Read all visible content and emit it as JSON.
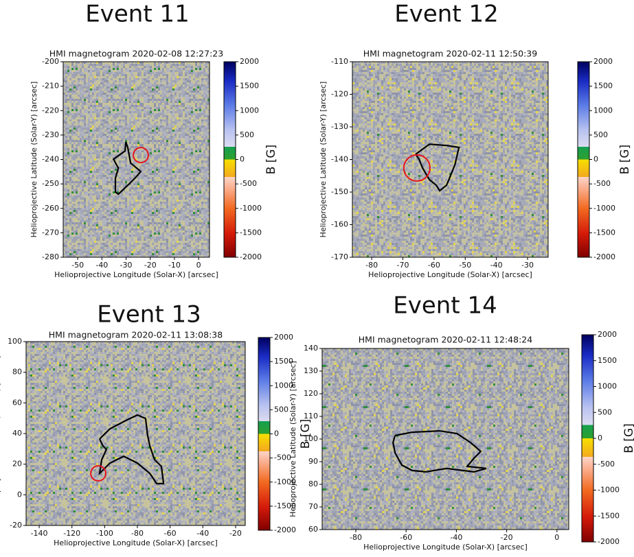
{
  "chart_data": [
    {
      "type": "image",
      "title": "Event 11",
      "subtitle": "HMI magnetogram 2020-02-08 12:27:23",
      "xlabel": "Helioprojective Longitude (Solar-X) [arcsec]",
      "ylabel": "Helioprojective Latitude (Solar-Y) [arcsec]",
      "xlim": [
        -56,
        4.5
      ],
      "ylim": [
        -280,
        -200
      ],
      "xticks": [
        -50,
        -40,
        -30,
        -20,
        -10,
        0
      ],
      "yticks": [
        -280,
        -270,
        -260,
        -250,
        -240,
        -230,
        -220,
        -210,
        -200
      ],
      "colorbar": {
        "label": "B [G]",
        "lim": [
          -2000,
          2000
        ],
        "ticks": [
          -2000,
          -1500,
          -1000,
          -500,
          0,
          500,
          1000,
          1500,
          2000
        ]
      },
      "contour": {
        "color": "#000000",
        "x": [
          -30.1,
          -29.3,
          -28.1,
          -23.9,
          -25.9,
          -28.7,
          -33.2,
          -34.4,
          -34.4,
          -33.2,
          -35.2,
          -30.4,
          -30.1
        ],
        "y": [
          -232.8,
          -235.1,
          -241.5,
          -244.9,
          -247.2,
          -250,
          -254.2,
          -253.3,
          -247.7,
          -243.5,
          -239.9,
          -236.5,
          -232.8
        ]
      },
      "marker": {
        "color": "#e8141c",
        "x": -23.9,
        "y": -238.2,
        "r": 3.1
      }
    },
    {
      "type": "image",
      "title": "Event 12",
      "subtitle": "HMI magnetogram 2020-02-11 12:50:39",
      "xlabel": "Helioprojective Longitude (Solar-X) [arcsec]",
      "ylabel": "Helioprojective Latitude (Solar-Y) [arcsec]",
      "xlim": [
        -86.2,
        -23.4
      ],
      "ylim": [
        -170,
        -110
      ],
      "xticks": [
        -80,
        -70,
        -60,
        -50,
        -40,
        -30
      ],
      "yticks": [
        -170,
        -160,
        -150,
        -140,
        -130,
        -120,
        -110
      ],
      "colorbar": {
        "label": "B [G]",
        "lim": [
          -2000,
          2000
        ],
        "ticks": [
          -2000,
          -1500,
          -1000,
          -500,
          0,
          500,
          1000,
          1500,
          2000
        ]
      },
      "contour": {
        "color": "#000000",
        "x": [
          -65.9,
          -61.5,
          -56.0,
          -52.0,
          -53.3,
          -54.9,
          -56.0,
          -58.2,
          -59.3,
          -61.5,
          -63.7,
          -64.8,
          -65.9
        ],
        "y": [
          -138.4,
          -135.3,
          -135.7,
          -136.3,
          -141.6,
          -145.4,
          -147.9,
          -149.6,
          -147.9,
          -146.2,
          -142.6,
          -139.9,
          -138.4
        ]
      },
      "marker": {
        "color": "#e8141c",
        "x": -65.5,
        "y": -142.6,
        "r": 4.2
      }
    },
    {
      "type": "image",
      "title": "Event 13",
      "subtitle": "HMI magnetogram 2020-02-11 13:08:38",
      "xlabel": "Helioprojective Longitude (Solar-X) [arcsec]",
      "ylabel": "Helioprojective Latitude (Solar-Y) [arcsec]",
      "xlim": [
        -148,
        -14.1
      ],
      "ylim": [
        -20,
        100
      ],
      "xticks": [
        -140,
        -120,
        -100,
        -80,
        -60,
        -40,
        -20
      ],
      "yticks": [
        -20,
        0,
        20,
        40,
        60,
        80,
        100
      ],
      "colorbar": {
        "label": "B [G]",
        "lim": [
          -2000,
          2000
        ],
        "ticks": [
          -2000,
          -1500,
          -1000,
          -500,
          0,
          500,
          1000,
          1500,
          2000
        ]
      },
      "contour": {
        "color": "#000000",
        "x": [
          -103.1,
          -96.8,
          -86.3,
          -80.0,
          -75.0,
          -73.7,
          -72.4,
          -69.5,
          -65.3,
          -64.0,
          -68.2,
          -72.4,
          -80.0,
          -88.4,
          -96.8,
          -103.1,
          -101.8,
          -98.9,
          -101.0,
          -103.1
        ],
        "y": [
          36.4,
          43.1,
          48.9,
          52.1,
          49.8,
          38.6,
          31.9,
          23.0,
          18.5,
          7.3,
          7.3,
          14.0,
          20.7,
          25.2,
          20.7,
          14.0,
          23.0,
          29.7,
          31.9,
          36.4
        ]
      },
      "marker": {
        "color": "#e8141c",
        "x": -103.9,
        "y": 14.0,
        "r": 4.6
      }
    },
    {
      "type": "image",
      "title": "Event 14",
      "subtitle": "HMI magnetogram 2020-02-11 12:48:24",
      "xlabel": "Helioprojective Longitude (Solar-X) [arcsec]",
      "ylabel": "Helioprojective Latitude (Solar-Y) [arcsec]",
      "xlim": [
        -93.4,
        4.7
      ],
      "ylim": [
        60,
        140
      ],
      "xticks": [
        -80,
        -60,
        -40,
        -20,
        0
      ],
      "yticks": [
        60,
        70,
        80,
        90,
        100,
        110,
        120,
        130,
        140
      ],
      "colorbar": {
        "label": "B [G]",
        "lim": [
          -2000,
          2000
        ],
        "ticks": [
          -2000,
          -1500,
          -1000,
          -500,
          0,
          500,
          1000,
          1500,
          2000
        ]
      },
      "contour": {
        "color": "#000000",
        "x": [
          -64.4,
          -57.6,
          -46.7,
          -39.8,
          -34.4,
          -30.3,
          -33.0,
          -35.7,
          -28.1,
          -33.0,
          -43.9,
          -52.1,
          -57.6,
          -61.7,
          -64.4,
          -65.2,
          -64.4
        ],
        "y": [
          101.5,
          103.0,
          103.6,
          102.4,
          98.5,
          94.5,
          91.5,
          87.9,
          87.0,
          85.5,
          87.0,
          85.5,
          86.1,
          88.5,
          93.9,
          98.5,
          101.5
        ]
      },
      "marker": null
    }
  ]
}
